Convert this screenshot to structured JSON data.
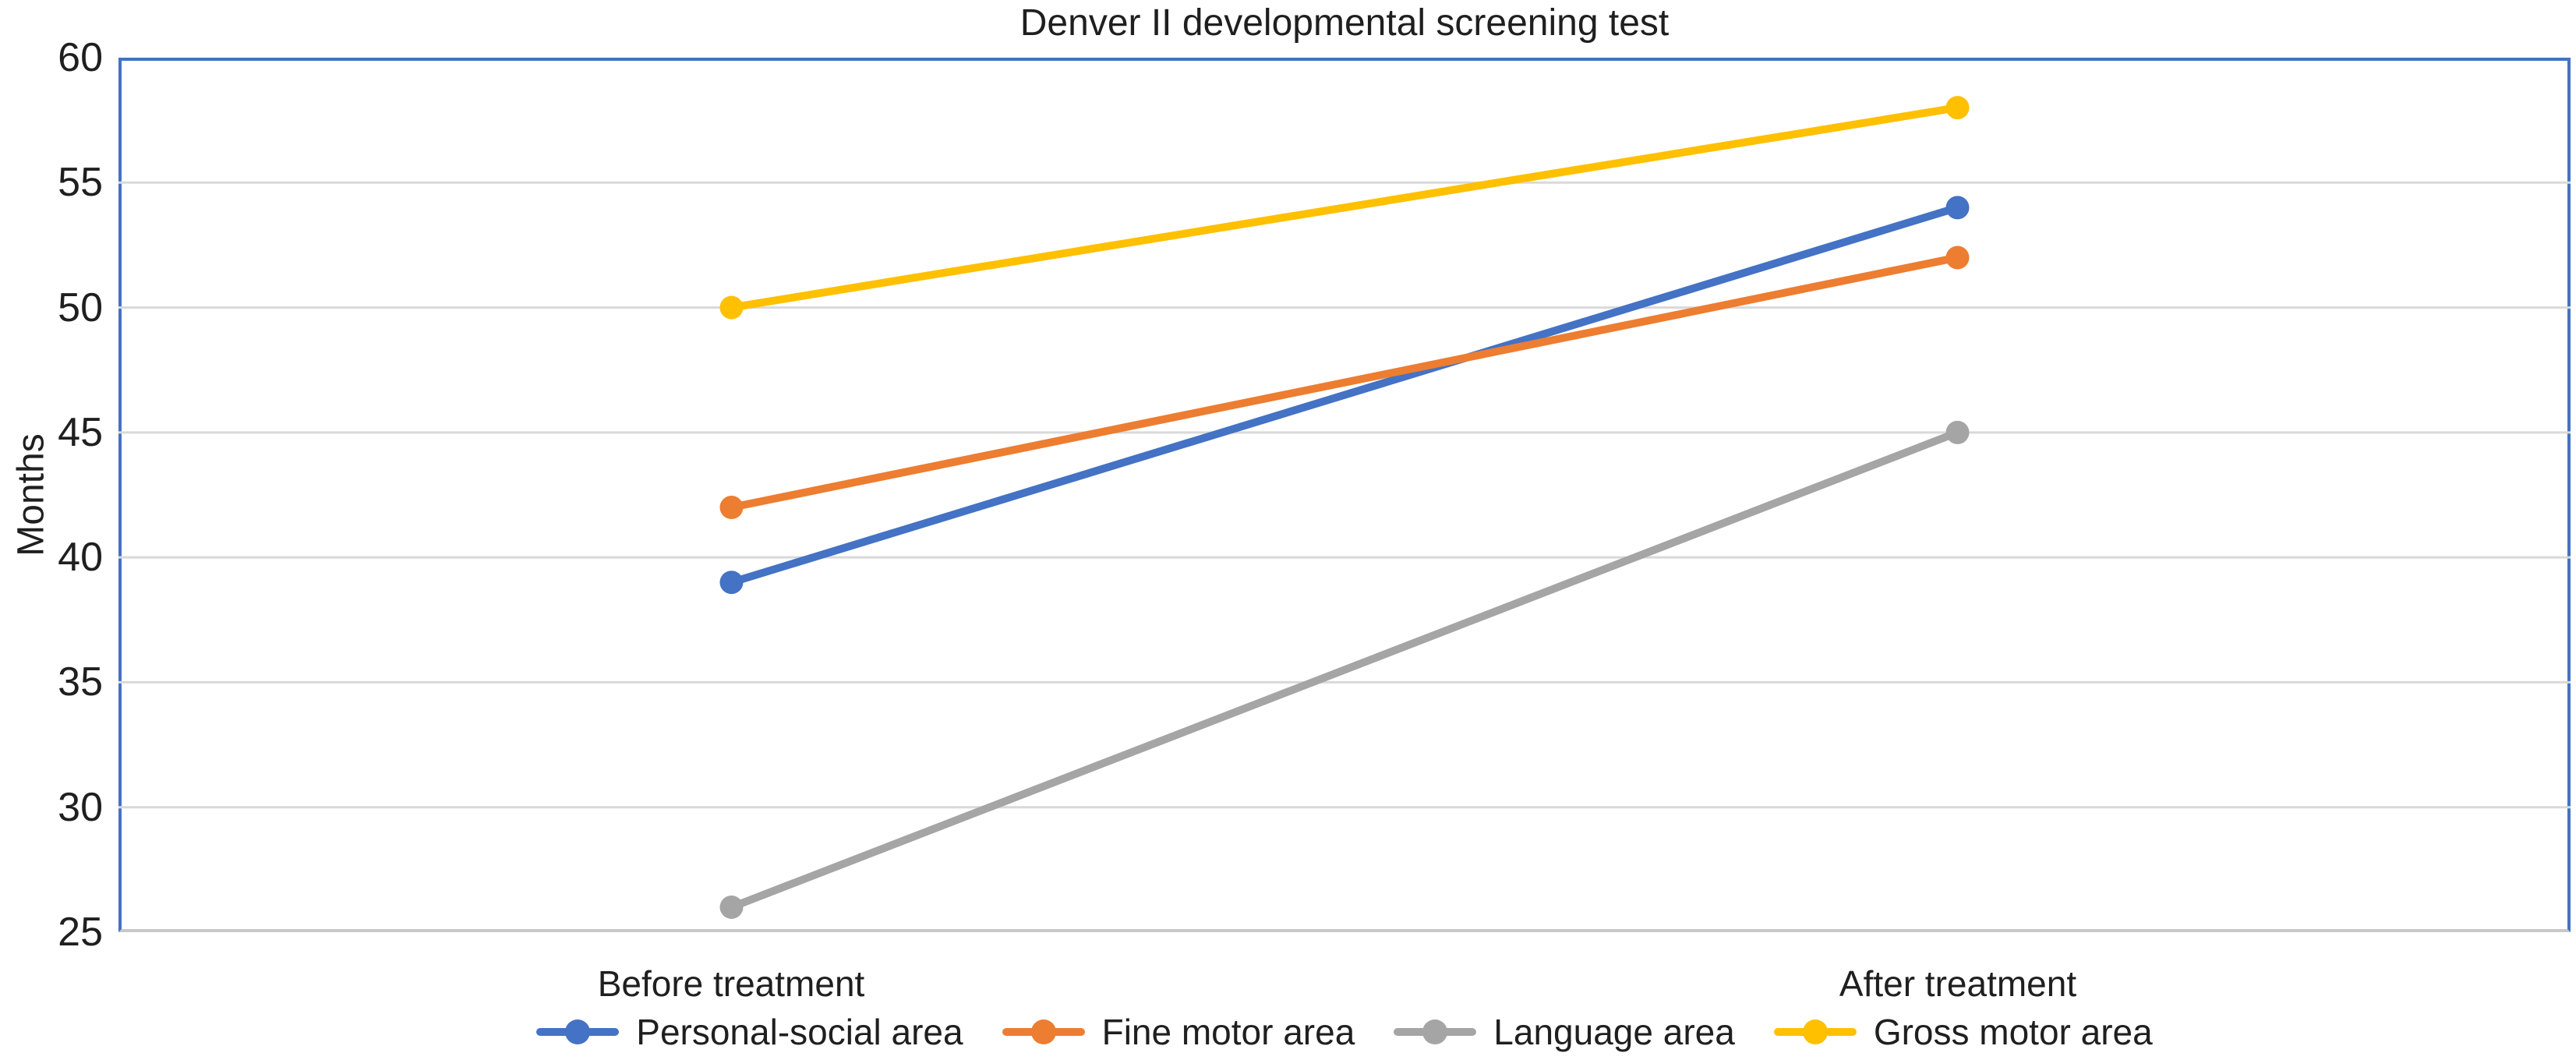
{
  "chart_data": {
    "type": "line",
    "title": "Denver II developmental screening test",
    "xlabel": "",
    "ylabel": "Months",
    "categories": [
      "Before treatment",
      "After treatment"
    ],
    "series": [
      {
        "name": "Personal-social area",
        "values": [
          39,
          54
        ],
        "color": "#4472C4"
      },
      {
        "name": "Fine motor area",
        "values": [
          42,
          52
        ],
        "color": "#ED7D31"
      },
      {
        "name": "Language area",
        "values": [
          26,
          45
        ],
        "color": "#A5A5A5"
      },
      {
        "name": "Gross motor area",
        "values": [
          50,
          58
        ],
        "color": "#FFC000"
      }
    ],
    "ylim": [
      25,
      60
    ],
    "yticks": [
      25,
      30,
      35,
      40,
      45,
      50,
      55,
      60
    ],
    "grid": true,
    "legend_position": "bottom",
    "plot_border_color": "#4472C4",
    "axis_line_color": "#C8C8C8",
    "gridline_color": "#D9D9D9",
    "text_color": "#1F1F1F"
  }
}
